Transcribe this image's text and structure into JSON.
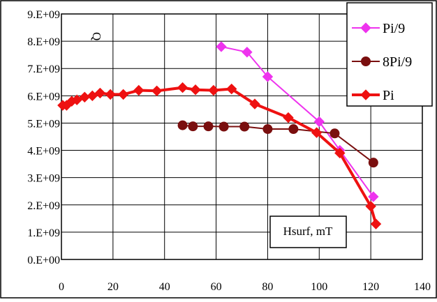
{
  "chart_data": {
    "type": "line",
    "title": "",
    "xlabel": "",
    "ylabel": "",
    "xlim": [
      0,
      140
    ],
    "ylim": [
      0,
      9000000000
    ],
    "x_ticks": [
      0,
      20,
      40,
      60,
      80,
      100,
      120,
      140
    ],
    "x_tick_labels": [
      "0",
      "20",
      "40",
      "60",
      "80",
      "100",
      "120",
      "140"
    ],
    "y_ticks": [
      0,
      1000000000,
      2000000000,
      3000000000,
      4000000000,
      5000000000,
      6000000000,
      7000000000,
      8000000000,
      9000000000
    ],
    "y_tick_labels": [
      "0.E+00",
      "1.E+09",
      "2.E+09",
      "3.E+09",
      "4.E+09",
      "5.E+09",
      "6.E+09",
      "7.E+09",
      "8.E+09",
      "9.E+09"
    ],
    "grid": true,
    "legend_position": "top-right",
    "annotations": {
      "q_label": "Q",
      "hsurf_label": "Hsurf, mT"
    },
    "series": [
      {
        "name": "Pi/9",
        "color": "#ee33ee",
        "marker": "diamond",
        "x": [
          62,
          72,
          80,
          100,
          108,
          121
        ],
        "y": [
          7800000000,
          7600000000,
          6700000000,
          5050000000,
          4000000000,
          2300000000
        ]
      },
      {
        "name": "8Pi/9",
        "color": "#7a0f0f",
        "marker": "circle",
        "x": [
          47,
          51,
          57,
          63,
          71,
          80,
          90,
          106,
          121
        ],
        "y": [
          4920000000,
          4880000000,
          4880000000,
          4870000000,
          4870000000,
          4780000000,
          4780000000,
          4620000000,
          3550000000
        ]
      },
      {
        "name": "Pi",
        "color": "#ee1111",
        "marker": "diamond",
        "x": [
          0.5,
          2,
          4,
          6,
          9,
          12,
          15,
          19,
          24,
          30,
          37,
          47,
          52,
          59,
          66,
          75,
          88,
          99,
          108,
          120,
          122
        ],
        "y": [
          5650000000,
          5650000000,
          5800000000,
          5850000000,
          5950000000,
          6000000000,
          6100000000,
          6050000000,
          6050000000,
          6200000000,
          6180000000,
          6300000000,
          6220000000,
          6200000000,
          6250000000,
          5700000000,
          5200000000,
          4650000000,
          3900000000,
          1950000000,
          1300000000
        ]
      }
    ]
  }
}
